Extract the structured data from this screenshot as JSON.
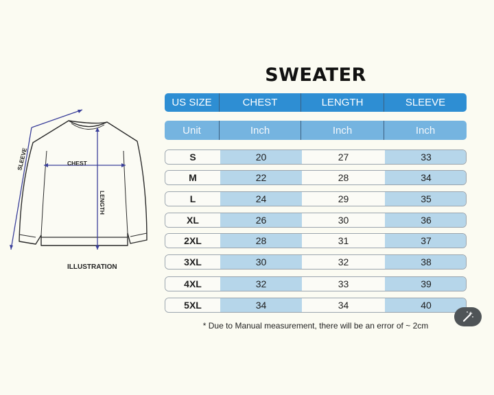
{
  "title": "SWEATER",
  "columns": [
    "US SIZE",
    "CHEST",
    "LENGTH",
    "SLEEVE"
  ],
  "units": [
    "Unit",
    "Inch",
    "Inch",
    "Inch"
  ],
  "rows": [
    {
      "size": "S",
      "chest": "20",
      "length": "27",
      "sleeve": "33"
    },
    {
      "size": "M",
      "chest": "22",
      "length": "28",
      "sleeve": "34"
    },
    {
      "size": "L",
      "chest": "24",
      "length": "29",
      "sleeve": "35"
    },
    {
      "size": "XL",
      "chest": "26",
      "length": "30",
      "sleeve": "36"
    },
    {
      "size": "2XL",
      "chest": "28",
      "length": "31",
      "sleeve": "37"
    },
    {
      "size": "3XL",
      "chest": "30",
      "length": "32",
      "sleeve": "38"
    },
    {
      "size": "4XL",
      "chest": "32",
      "length": "33",
      "sleeve": "39"
    },
    {
      "size": "5XL",
      "chest": "34",
      "length": "34",
      "sleeve": "40"
    }
  ],
  "note": "* Due to Manual measurement, there will be an error of ~ 2cm",
  "illustration": {
    "caption": "ILLUSTRATION",
    "chest_label": "CHEST",
    "length_label": "LENGTH",
    "sleeve_label": "SLEEVE"
  },
  "colors": {
    "header": "#2e8ed3",
    "units": "#75b4e0",
    "cell_blue": "#b6d6ea",
    "arrow": "#3a3f9a"
  },
  "icons": {
    "fab": "magic-wand-icon"
  }
}
